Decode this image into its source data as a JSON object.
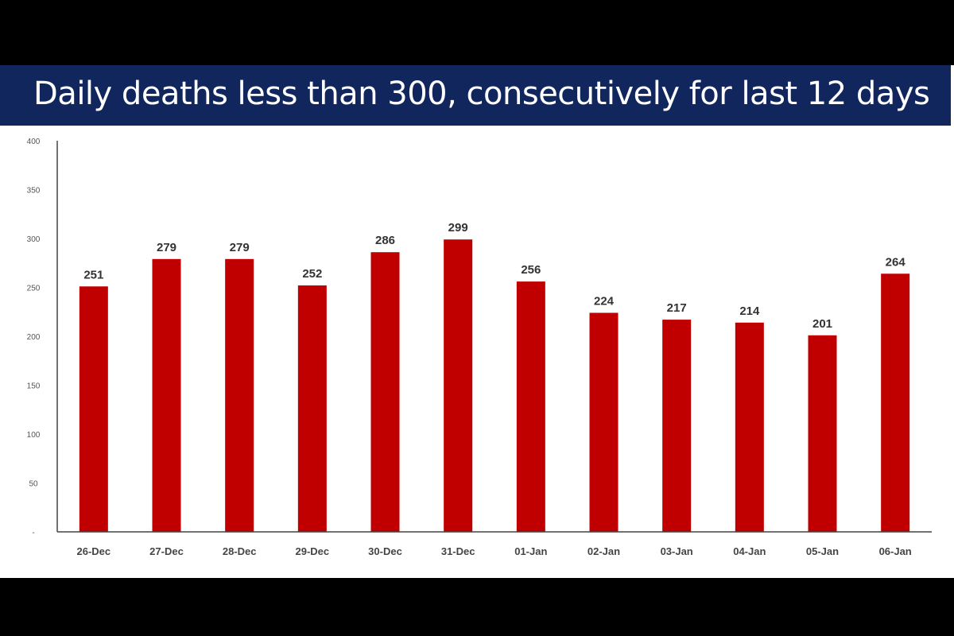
{
  "colors": {
    "background": "#000000",
    "slide": "#ffffff",
    "banner": "#12265e",
    "title_text": "#ffffff",
    "bar": "#c00000",
    "axis": "#444444"
  },
  "chart_data": {
    "type": "bar",
    "title": "Daily deaths less than 300, consecutively for last 12 days",
    "categories": [
      "26-Dec",
      "27-Dec",
      "28-Dec",
      "29-Dec",
      "30-Dec",
      "31-Dec",
      "01-Jan",
      "02-Jan",
      "03-Jan",
      "04-Jan",
      "05-Jan",
      "06-Jan"
    ],
    "values": [
      251,
      279,
      279,
      252,
      286,
      299,
      256,
      224,
      217,
      214,
      201,
      264
    ],
    "ylim": [
      0,
      400
    ],
    "yticks": [
      0,
      50,
      100,
      150,
      200,
      250,
      300,
      350,
      400
    ],
    "ytick_labels": [
      "-",
      "50",
      "100",
      "150",
      "200",
      "250",
      "300",
      "350",
      "400"
    ],
    "data_labels": true,
    "grid": false,
    "legend": "none"
  }
}
